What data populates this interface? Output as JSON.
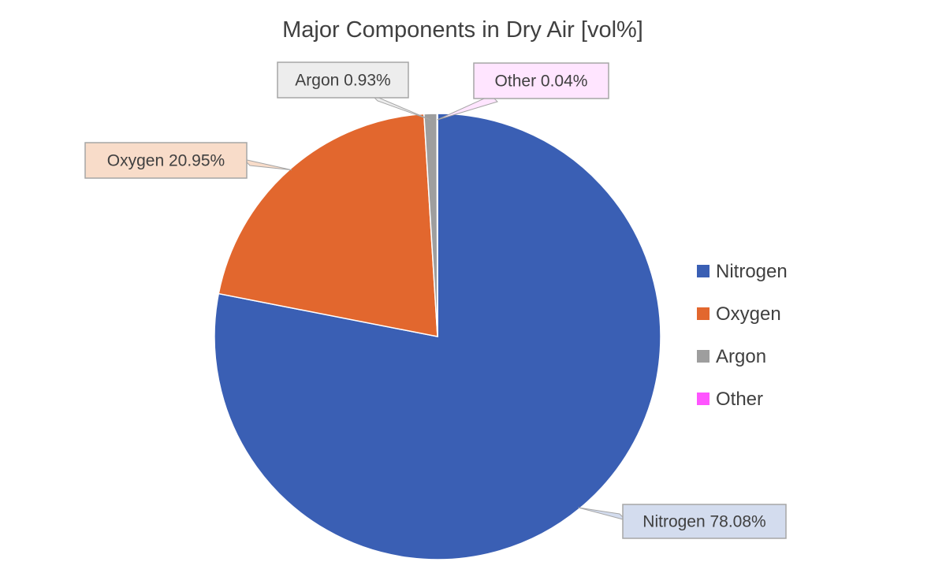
{
  "chart_data": {
    "type": "pie",
    "title": "Major Components  in Dry Air [vol%]",
    "categories": [
      "Nitrogen",
      "Oxygen",
      "Argon",
      "Other"
    ],
    "values": [
      78.08,
      20.95,
      0.93,
      0.04
    ],
    "value_labels": [
      "78.08%",
      "20.95%",
      "0.93%",
      "0.04%"
    ],
    "colors": [
      "#3A5FB4",
      "#E2672E",
      "#9E9E9E",
      "#FF55FF"
    ],
    "label_fill_colors": [
      "#D3DCEE",
      "#F8DCC9",
      "#EDEDED",
      "#FFE5FF"
    ],
    "start_angle_deg": 0,
    "direction": "clockwise",
    "data_label_style": "callout",
    "legend_position": "right"
  }
}
